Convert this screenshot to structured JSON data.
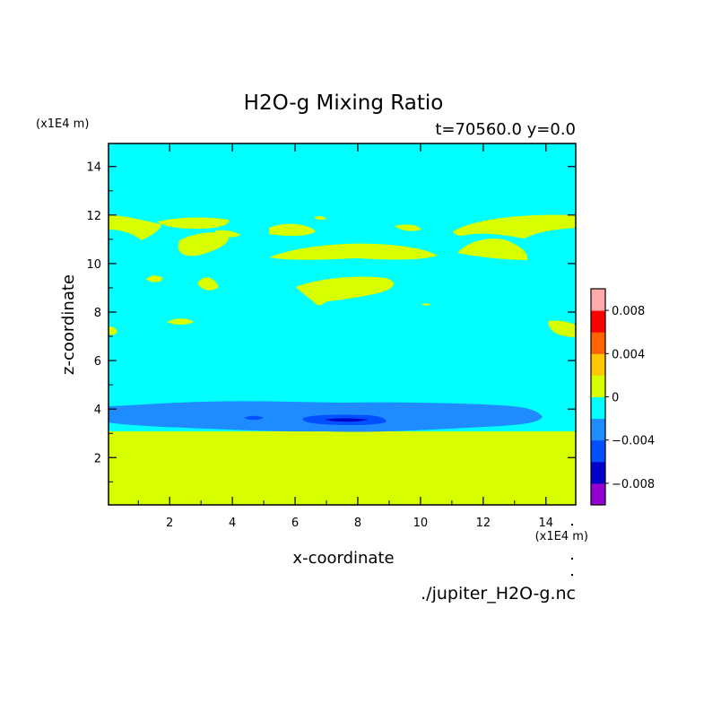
{
  "chart_data": {
    "type": "heatmap",
    "title": "H2O-g Mixing Ratio",
    "subtitle": "t=70560.0 y=0.0",
    "xlabel": "x-coordinate",
    "ylabel": "z-coordinate",
    "x_unit": "(x1E4 m)",
    "y_unit": "(x1E4 m)",
    "file_label": "./jupiter_H2O-g.nc",
    "xlim": [
      0.05,
      14.95
    ],
    "ylim": [
      0.05,
      14.95
    ],
    "x_ticks": [
      2,
      4,
      6,
      8,
      10,
      12,
      14
    ],
    "y_ticks": [
      2,
      4,
      6,
      8,
      10,
      12,
      14
    ],
    "colorbar": {
      "levels": [
        -0.01,
        -0.008,
        -0.006,
        -0.004,
        -0.002,
        0,
        0.002,
        0.004,
        0.006,
        0.008,
        0.01
      ],
      "colors": [
        "#9400d3",
        "#0000c8",
        "#0050ff",
        "#1e8cff",
        "#00ffff",
        "#d7ff00",
        "#ffc800",
        "#ff6400",
        "#ff0000",
        "#ffaaaa"
      ],
      "tick_labels": [
        {
          "value": -0.008,
          "label": "−0.008"
        },
        {
          "value": -0.004,
          "label": "−0.004"
        },
        {
          "value": 0,
          "label": "0"
        },
        {
          "value": 0.004,
          "label": "0.004"
        },
        {
          "value": 0.008,
          "label": "0.008"
        }
      ]
    },
    "regions": [
      {
        "name": "background",
        "level": 0
      },
      {
        "name": "lower-layer",
        "level": 1
      },
      {
        "name": "depleted-band",
        "level": -1
      },
      {
        "name": "depleted-core",
        "level": -2
      },
      {
        "name": "depleted-min",
        "level": -3
      },
      {
        "name": "upper-patches",
        "level": 1
      }
    ]
  }
}
